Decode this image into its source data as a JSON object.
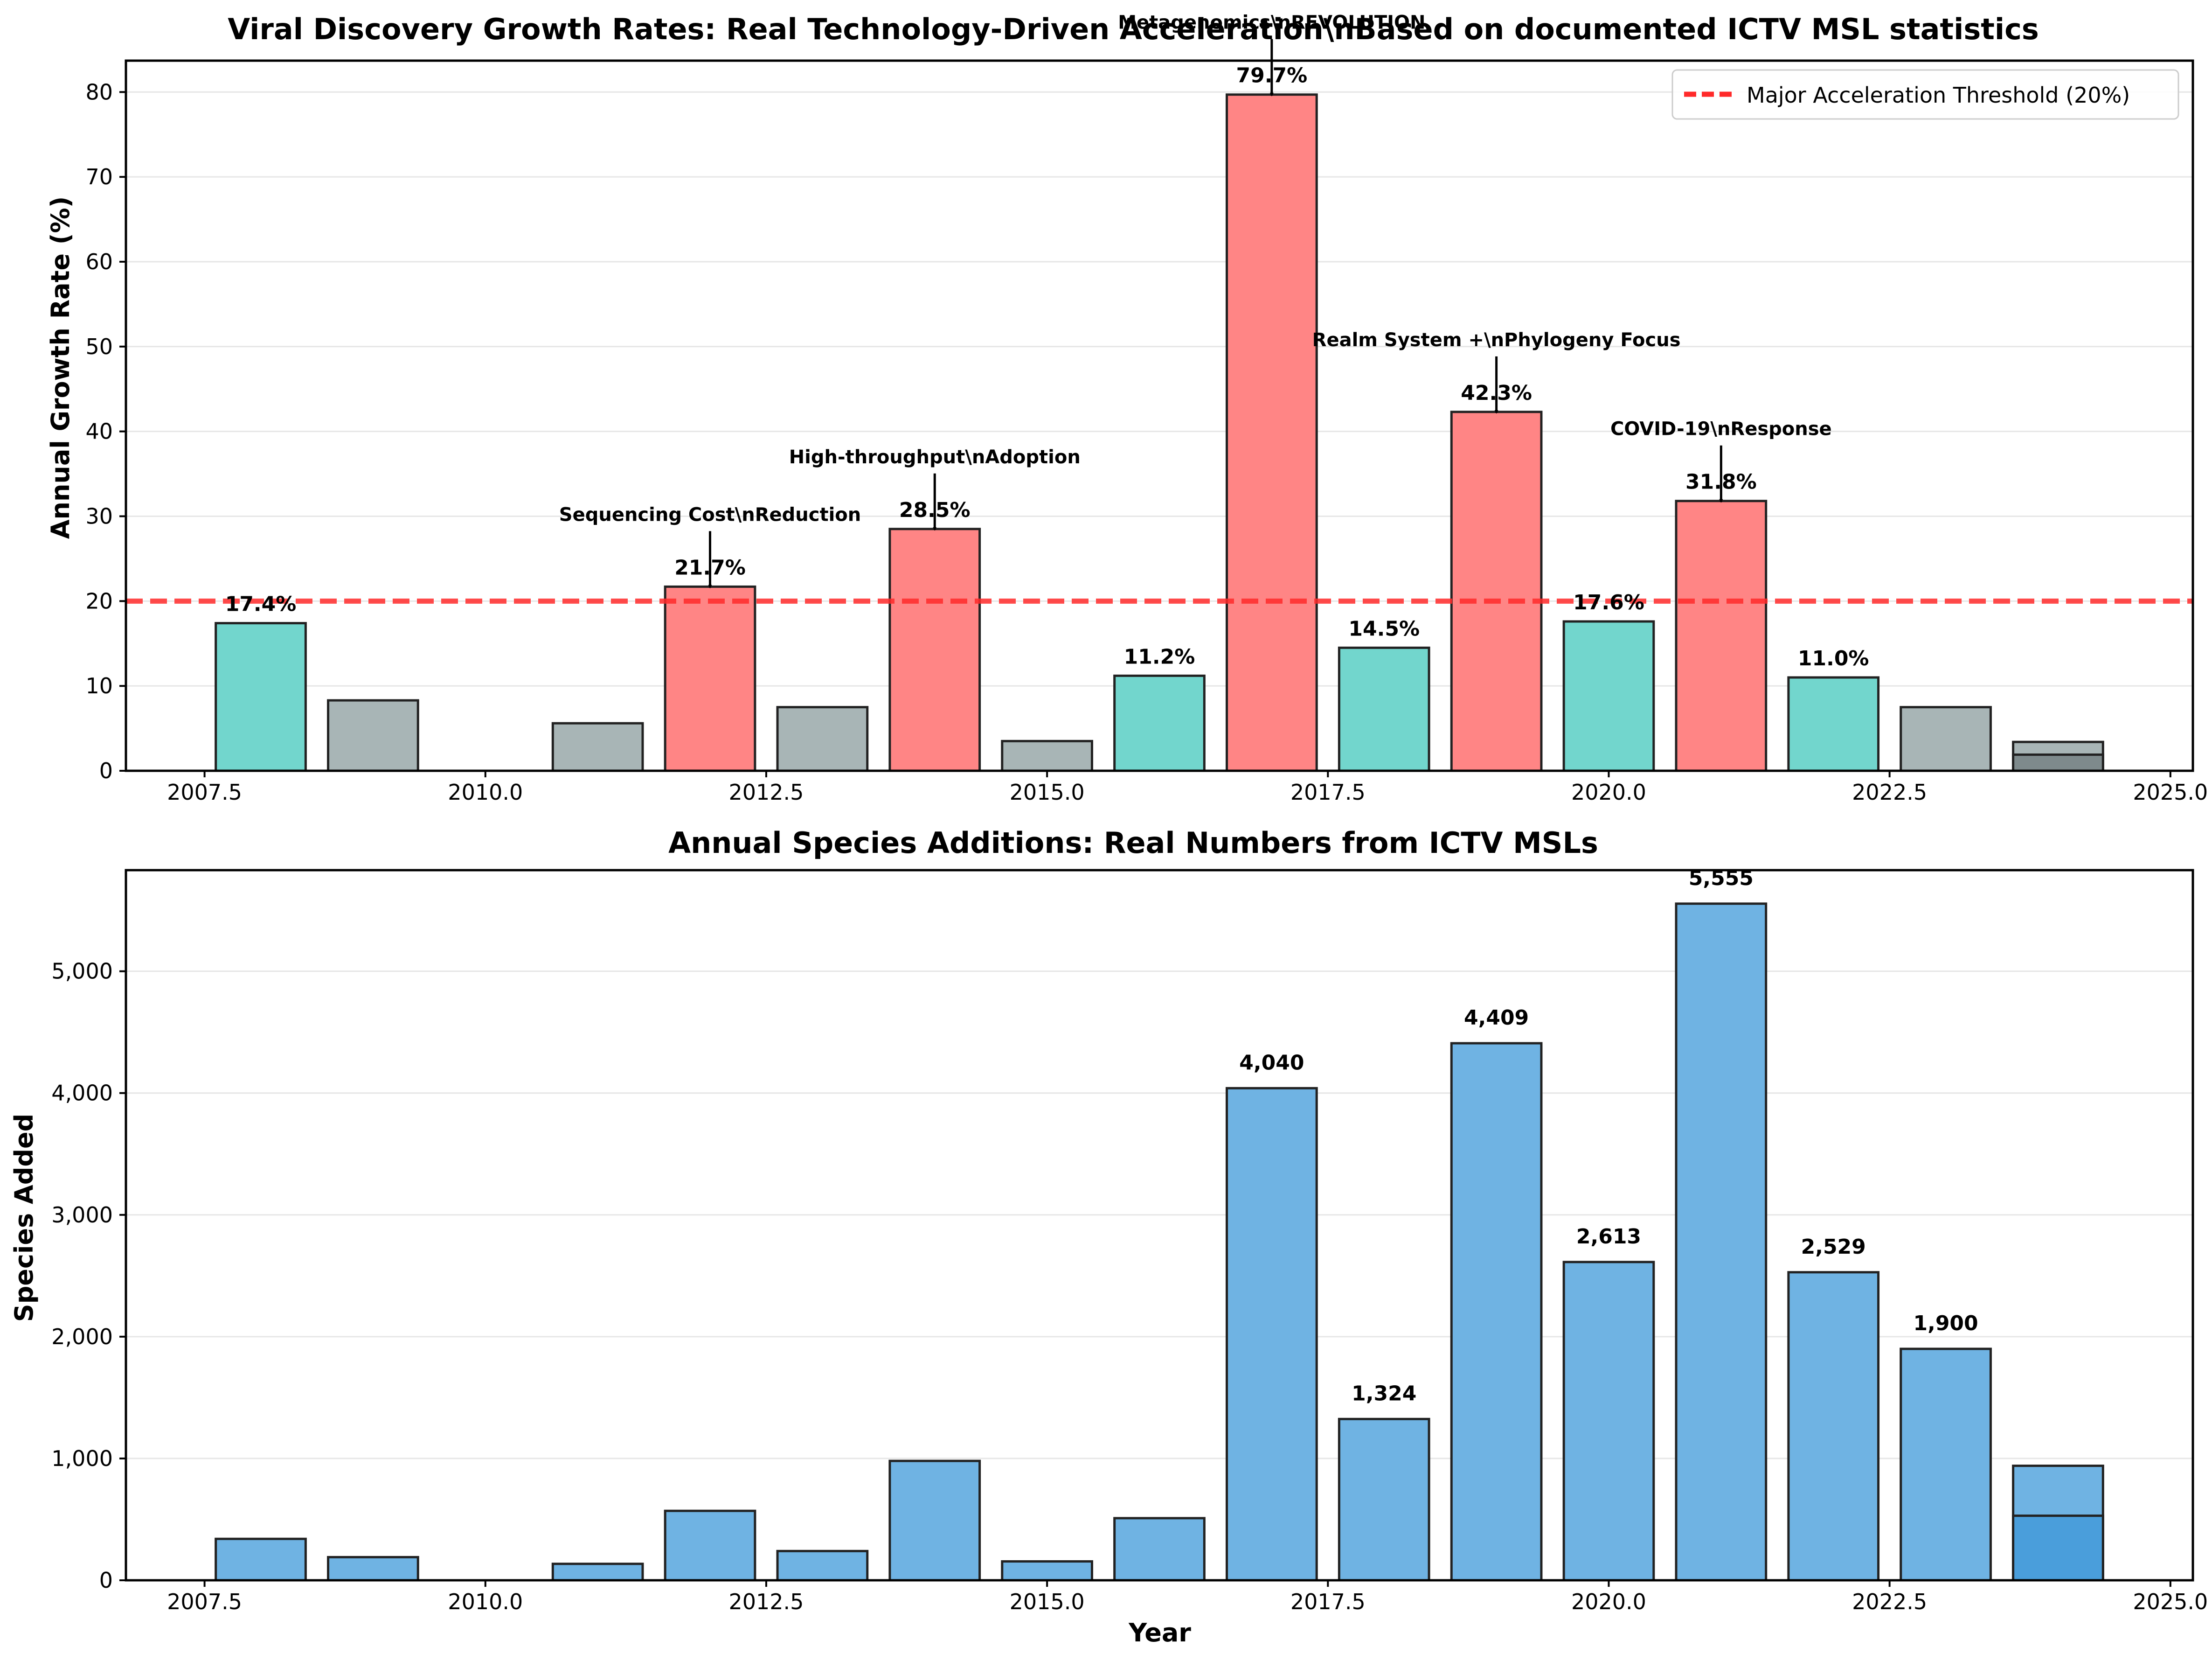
{
  "chart_data": [
    {
      "type": "bar",
      "title": "Viral Discovery Growth Rates: Real Technology-Driven Acceleration\\nBased on documented ICTV MSL statistics",
      "xlabel": "",
      "ylabel": "Annual Growth Rate (%)",
      "xlim": [
        2006.8,
        2025.2
      ],
      "ylim": [
        0,
        83.7
      ],
      "xticks": [
        2007.5,
        2010.0,
        2012.5,
        2015.0,
        2017.5,
        2020.0,
        2022.5,
        2025.0
      ],
      "xtick_labels": [
        "2007.5",
        "2010.0",
        "2012.5",
        "2015.0",
        "2017.5",
        "2020.0",
        "2022.5",
        "2025.0"
      ],
      "yticks": [
        0,
        10,
        20,
        30,
        40,
        50,
        60,
        70,
        80
      ],
      "grid": "y",
      "legend_position": "top-right",
      "reference_line": {
        "y": 20,
        "label": "Major Acceleration Threshold (20%)",
        "color": "#ff2a2a",
        "style": "dashed"
      },
      "colors": {
        "high": "#ff8585",
        "moderate": "#72d6cd",
        "low": "#a8b5b6",
        "overlay": "#7e8a8c",
        "edge": "#222222"
      },
      "bars": [
        {
          "x": 2008,
          "value": 17.4,
          "label": "17.4%",
          "group": "moderate"
        },
        {
          "x": 2009,
          "value": 8.3,
          "label": "",
          "group": "low"
        },
        {
          "x": 2010,
          "value": 0,
          "label": "",
          "group": "low"
        },
        {
          "x": 2011,
          "value": 5.6,
          "label": "",
          "group": "low"
        },
        {
          "x": 2012,
          "value": 21.7,
          "label": "21.7%",
          "group": "high"
        },
        {
          "x": 2013,
          "value": 7.5,
          "label": "",
          "group": "low"
        },
        {
          "x": 2014,
          "value": 28.5,
          "label": "28.5%",
          "group": "high"
        },
        {
          "x": 2015,
          "value": 3.5,
          "label": "",
          "group": "low"
        },
        {
          "x": 2016,
          "value": 11.2,
          "label": "11.2%",
          "group": "moderate"
        },
        {
          "x": 2017,
          "value": 79.7,
          "label": "79.7%",
          "group": "high"
        },
        {
          "x": 2018,
          "value": 14.5,
          "label": "14.5%",
          "group": "moderate"
        },
        {
          "x": 2019,
          "value": 42.3,
          "label": "42.3%",
          "group": "high"
        },
        {
          "x": 2020,
          "value": 17.6,
          "label": "17.6%",
          "group": "moderate"
        },
        {
          "x": 2021,
          "value": 31.8,
          "label": "31.8%",
          "group": "high"
        },
        {
          "x": 2022,
          "value": 11.0,
          "label": "11.0%",
          "group": "moderate"
        },
        {
          "x": 2023,
          "value": 7.5,
          "label": "",
          "group": "low"
        },
        {
          "x": 2024,
          "value": 3.4,
          "label": "",
          "group": "low"
        },
        {
          "x": 2024,
          "value": 1.9,
          "label": "",
          "group": "overlay"
        }
      ],
      "annotations": [
        {
          "x": 2012,
          "y": 21.7,
          "text": "Sequencing Cost\\nReduction"
        },
        {
          "x": 2014,
          "y": 28.5,
          "text": "High-throughput\\nAdoption"
        },
        {
          "x": 2017,
          "y": 79.7,
          "text": "Metagenomics\\nREVOLUTION"
        },
        {
          "x": 2019,
          "y": 42.3,
          "text": "Realm System +\\nPhylogeny Focus"
        },
        {
          "x": 2021,
          "y": 31.8,
          "text": "COVID-19\\nResponse"
        }
      ]
    },
    {
      "type": "bar",
      "title": "Annual Species Additions: Real Numbers from ICTV MSLs",
      "xlabel": "Year",
      "ylabel": "Species Added",
      "xlim": [
        2006.8,
        2025.2
      ],
      "ylim": [
        0,
        5830
      ],
      "xticks": [
        2007.5,
        2010.0,
        2012.5,
        2015.0,
        2017.5,
        2020.0,
        2022.5,
        2025.0
      ],
      "xtick_labels": [
        "2007.5",
        "2010.0",
        "2012.5",
        "2015.0",
        "2017.5",
        "2020.0",
        "2022.5",
        "2025.0"
      ],
      "yticks": [
        0,
        1000,
        2000,
        3000,
        4000,
        5000
      ],
      "ytick_labels": [
        "0",
        "1,000",
        "2,000",
        "3,000",
        "4,000",
        "5,000"
      ],
      "grid": "y",
      "colors": {
        "bar": "#6fb3e3",
        "overlay": "#4a9edb",
        "edge": "#222222"
      },
      "bars": [
        {
          "x": 2008,
          "value": 340,
          "label": "",
          "group": "bar"
        },
        {
          "x": 2009,
          "value": 190,
          "label": "",
          "group": "bar"
        },
        {
          "x": 2010,
          "value": 0,
          "label": "",
          "group": "bar"
        },
        {
          "x": 2011,
          "value": 135,
          "label": "",
          "group": "bar"
        },
        {
          "x": 2012,
          "value": 570,
          "label": "",
          "group": "bar"
        },
        {
          "x": 2013,
          "value": 240,
          "label": "",
          "group": "bar"
        },
        {
          "x": 2014,
          "value": 980,
          "label": "",
          "group": "bar"
        },
        {
          "x": 2015,
          "value": 155,
          "label": "",
          "group": "bar"
        },
        {
          "x": 2016,
          "value": 510,
          "label": "",
          "group": "bar"
        },
        {
          "x": 2017,
          "value": 4040,
          "label": "4,040",
          "group": "bar"
        },
        {
          "x": 2018,
          "value": 1324,
          "label": "1,324",
          "group": "bar"
        },
        {
          "x": 2019,
          "value": 4409,
          "label": "4,409",
          "group": "bar"
        },
        {
          "x": 2020,
          "value": 2613,
          "label": "2,613",
          "group": "bar"
        },
        {
          "x": 2021,
          "value": 5555,
          "label": "5,555",
          "group": "bar"
        },
        {
          "x": 2022,
          "value": 2529,
          "label": "2,529",
          "group": "bar"
        },
        {
          "x": 2023,
          "value": 1900,
          "label": "1,900",
          "group": "bar"
        },
        {
          "x": 2024,
          "value": 940,
          "label": "",
          "group": "bar"
        },
        {
          "x": 2024,
          "value": 530,
          "label": "",
          "group": "overlay"
        }
      ],
      "annotations": []
    }
  ]
}
